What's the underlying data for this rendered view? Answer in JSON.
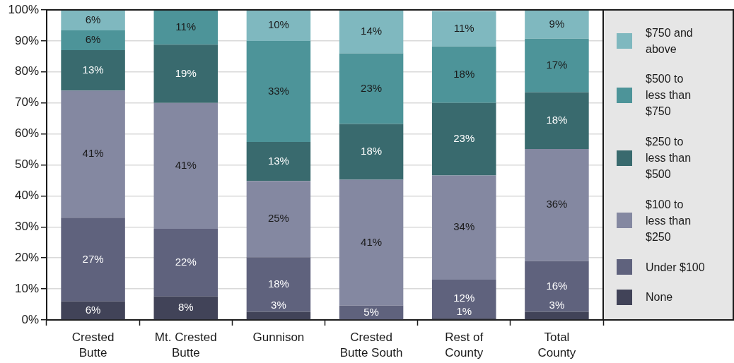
{
  "chart_data": {
    "type": "bar",
    "stacked": true,
    "categories": [
      "Crested Butte",
      "Mt. Crested Butte",
      "Gunnison",
      "Crested Butte South",
      "Rest of County",
      "Total County"
    ],
    "series": [
      {
        "name": "None",
        "color": "#414358",
        "values": [
          6.0,
          7.6,
          2.6,
          null,
          0.6,
          2.6
        ],
        "value_labels": [
          "6%",
          "8%",
          "3%",
          null,
          "1%",
          "3%"
        ]
      },
      {
        "name": "Under $100",
        "color": "#5f627d",
        "values": [
          27.0,
          21.8,
          17.6,
          4.6,
          12.4,
          16.4
        ],
        "value_labels": [
          "27%",
          "22%",
          "18%",
          "5%",
          "12%",
          "16%"
        ]
      },
      {
        "name": "$100 to less than $250",
        "color": "#8488a1",
        "values": [
          41.0,
          40.6,
          24.6,
          40.6,
          33.6,
          36.1
        ],
        "value_labels": [
          "41%",
          "41%",
          "25%",
          "41%",
          "34%",
          "36%"
        ]
      },
      {
        "name": "$250 to less than $500",
        "color": "#396a6e",
        "values": [
          13.0,
          18.8,
          12.6,
          18.0,
          23.4,
          18.3
        ],
        "value_labels": [
          "13%",
          "19%",
          "13%",
          "18%",
          "23%",
          "18%"
        ]
      },
      {
        "name": "$500 to less than $750",
        "color": "#4d9499",
        "values": [
          6.4,
          11.2,
          32.6,
          22.8,
          18.2,
          17.3
        ],
        "value_labels": [
          "6%",
          "11%",
          "33%",
          "23%",
          "18%",
          "17%"
        ]
      },
      {
        "name": "$750 and above",
        "color": "#7fb8bf",
        "values": [
          6.4,
          null,
          10.0,
          14.0,
          11.4,
          9.3
        ],
        "value_labels": [
          "6%",
          null,
          "10%",
          "14%",
          "11%",
          "9%"
        ]
      }
    ],
    "ylim": [
      0,
      100
    ],
    "yticks": [
      {
        "value": 0,
        "label": "0%"
      },
      {
        "value": 10,
        "label": "10%"
      },
      {
        "value": 20,
        "label": "20%"
      },
      {
        "value": 30,
        "label": "30%"
      },
      {
        "value": 40,
        "label": "40%"
      },
      {
        "value": 50,
        "label": "50%"
      },
      {
        "value": 60,
        "label": "60%"
      },
      {
        "value": 70,
        "label": "70%"
      },
      {
        "value": 80,
        "label": "80%"
      },
      {
        "value": 90,
        "label": "90%"
      },
      {
        "value": 100,
        "label": "100%"
      }
    ],
    "grid": "y",
    "legend": "right"
  }
}
